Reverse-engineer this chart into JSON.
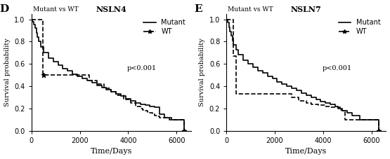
{
  "panel_D": {
    "label": "D",
    "title": "NSLN4",
    "subtitle": "Mutant vs WT",
    "pvalue": "p<0.001",
    "mutant": {
      "times": [
        0,
        50,
        100,
        150,
        200,
        250,
        300,
        400,
        500,
        700,
        900,
        1100,
        1300,
        1500,
        1700,
        1900,
        2100,
        2300,
        2500,
        2700,
        2900,
        3100,
        3300,
        3500,
        3700,
        3900,
        4100,
        4300,
        4500,
        4700,
        4900,
        5100,
        5300,
        5500,
        5700,
        6000,
        6300
      ],
      "survival": [
        1.0,
        0.98,
        0.95,
        0.92,
        0.88,
        0.84,
        0.8,
        0.75,
        0.7,
        0.65,
        0.62,
        0.59,
        0.56,
        0.54,
        0.51,
        0.49,
        0.47,
        0.45,
        0.43,
        0.41,
        0.39,
        0.37,
        0.35,
        0.33,
        0.31,
        0.29,
        0.27,
        0.25,
        0.24,
        0.23,
        0.22,
        0.21,
        0.15,
        0.12,
        0.1,
        0.1,
        0.0
      ],
      "style": "-",
      "color": "#000000",
      "marker": null,
      "linewidth": 1.2,
      "legend": "Mutant"
    },
    "wt": {
      "times": [
        0,
        200,
        350,
        480,
        490,
        600,
        700,
        800,
        900,
        1000,
        1200,
        1500,
        1800,
        2100,
        2400,
        2700,
        3000,
        3300,
        3500,
        3800,
        4100,
        4300,
        4500,
        4600,
        4700,
        4800,
        4900,
        5000,
        5100,
        5200,
        5300,
        5800,
        6000,
        6300
      ],
      "survival": [
        1.0,
        1.0,
        1.0,
        0.5,
        0.5,
        0.5,
        0.5,
        0.5,
        0.5,
        0.5,
        0.5,
        0.5,
        0.5,
        0.5,
        0.45,
        0.42,
        0.38,
        0.35,
        0.32,
        0.28,
        0.25,
        0.22,
        0.2,
        0.19,
        0.18,
        0.17,
        0.16,
        0.15,
        0.14,
        0.13,
        0.12,
        0.1,
        0.1,
        0.0
      ],
      "style": "--",
      "color": "#000000",
      "marker": "*",
      "linewidth": 1.2,
      "legend": "WT"
    },
    "wt_star_times": [
      490,
      6300
    ],
    "wt_star_surv": [
      0.5,
      0.0
    ],
    "mutant_star_times": [
      6300
    ],
    "mutant_star_surv": [
      0.0
    ],
    "xlim": [
      0,
      6600
    ],
    "ylim": [
      0,
      1.05
    ],
    "xticks": [
      0,
      2000,
      4000,
      6000
    ],
    "yticks": [
      0.0,
      0.2,
      0.4,
      0.6,
      0.8,
      1.0
    ],
    "xlabel": "Time/Days",
    "ylabel": "Survival probability"
  },
  "panel_E": {
    "label": "E",
    "title": "NSLN7",
    "subtitle": "Mutant vs WT",
    "pvalue": "p<0.001",
    "mutant": {
      "times": [
        0,
        50,
        100,
        150,
        200,
        250,
        300,
        400,
        500,
        700,
        900,
        1100,
        1300,
        1500,
        1700,
        1900,
        2100,
        2300,
        2500,
        2700,
        2900,
        3100,
        3300,
        3500,
        3700,
        3900,
        4100,
        4300,
        4500,
        4600,
        4700,
        4800,
        5000,
        5200,
        5500,
        6000,
        6300
      ],
      "survival": [
        1.0,
        0.97,
        0.93,
        0.89,
        0.85,
        0.81,
        0.77,
        0.73,
        0.68,
        0.63,
        0.6,
        0.57,
        0.54,
        0.52,
        0.49,
        0.47,
        0.44,
        0.42,
        0.4,
        0.38,
        0.36,
        0.34,
        0.32,
        0.3,
        0.28,
        0.26,
        0.25,
        0.24,
        0.22,
        0.21,
        0.2,
        0.18,
        0.16,
        0.14,
        0.1,
        0.1,
        0.0
      ],
      "style": "-",
      "color": "#000000",
      "marker": "*",
      "linewidth": 1.2,
      "legend": "Mutant"
    },
    "wt": {
      "times": [
        0,
        200,
        300,
        390,
        400,
        600,
        700,
        800,
        900,
        1000,
        1200,
        1500,
        1800,
        2100,
        2400,
        2700,
        3000,
        3300,
        3500,
        3800,
        4100,
        4300,
        4500,
        4600,
        4700,
        4800,
        4900,
        5000,
        5100,
        5200,
        5300,
        5800,
        6000,
        6300
      ],
      "survival": [
        1.0,
        1.0,
        0.67,
        0.67,
        0.33,
        0.33,
        0.33,
        0.33,
        0.33,
        0.33,
        0.33,
        0.33,
        0.33,
        0.33,
        0.33,
        0.3,
        0.27,
        0.25,
        0.24,
        0.23,
        0.22,
        0.21,
        0.21,
        0.2,
        0.19,
        0.18,
        0.1,
        0.1,
        0.1,
        0.1,
        0.1,
        0.1,
        0.1,
        0.0
      ],
      "style": "--",
      "color": "#000000",
      "marker": null,
      "linewidth": 1.2,
      "legend": "WT"
    },
    "wt_star_times": [
      6300
    ],
    "wt_star_surv": [
      0.0
    ],
    "mutant_star_times": [
      6300
    ],
    "mutant_star_surv": [
      0.0
    ],
    "xlim": [
      0,
      6600
    ],
    "ylim": [
      0,
      1.05
    ],
    "xticks": [
      0,
      2000,
      4000,
      6000
    ],
    "yticks": [
      0.0,
      0.2,
      0.4,
      0.6,
      0.8,
      1.0
    ],
    "xlabel": "Time/Days",
    "ylabel": "Survival probability"
  },
  "bg_color": "#ffffff",
  "font_color": "#000000",
  "fontsize_label": 8,
  "fontsize_tick": 7,
  "fontsize_legend": 7,
  "fontsize_panel_label": 11
}
